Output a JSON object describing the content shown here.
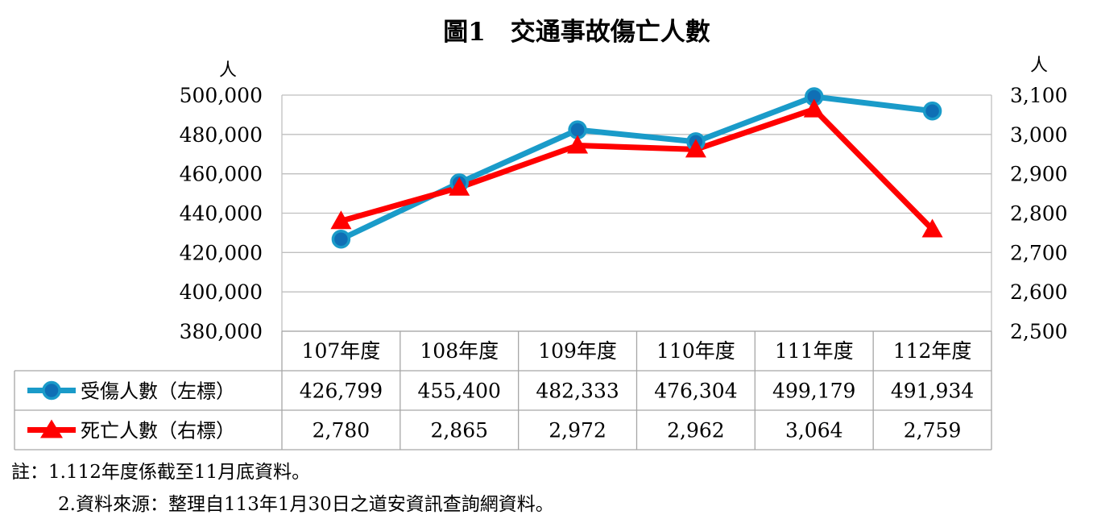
{
  "chart_data": {
    "type": "line",
    "title": "圖1　交通事故傷亡人數",
    "left_unit": "人",
    "right_unit": "人",
    "categories": [
      "107年度",
      "108年度",
      "109年度",
      "110年度",
      "111年度",
      "112年度"
    ],
    "y_left": {
      "lim": [
        380000,
        500000
      ],
      "ticks": [
        500000,
        480000,
        460000,
        440000,
        420000,
        400000,
        380000
      ],
      "tick_labels": [
        "500,000",
        "480,000",
        "460,000",
        "440,000",
        "420,000",
        "400,000",
        "380,000"
      ]
    },
    "y_right": {
      "lim": [
        2500,
        3100
      ],
      "ticks": [
        3100,
        3000,
        2900,
        2800,
        2700,
        2600,
        2500
      ],
      "tick_labels": [
        "3,100",
        "3,000",
        "2,900",
        "2,800",
        "2,700",
        "2,600",
        "2,500"
      ]
    },
    "series": [
      {
        "name": "受傷人數（左標）",
        "axis": "left",
        "color": "#1a9bc9",
        "marker": "circle",
        "values": [
          426799,
          455400,
          482333,
          476304,
          499179,
          491934
        ],
        "labels": [
          "426,799",
          "455,400",
          "482,333",
          "476,304",
          "499,179",
          "491,934"
        ]
      },
      {
        "name": "死亡人數（右標）",
        "axis": "right",
        "color": "#ff0000",
        "marker": "triangle",
        "values": [
          2780,
          2865,
          2972,
          2962,
          3064,
          2759
        ],
        "labels": [
          "2,780",
          "2,865",
          "2,972",
          "2,962",
          "3,064",
          "2,759"
        ]
      }
    ],
    "grid": true,
    "data_table": true
  },
  "notes": [
    "註：1.112年度係截至11月底資料。",
    "2.資料來源：整理自113年1月30日之道安資訊查詢網資料。"
  ]
}
